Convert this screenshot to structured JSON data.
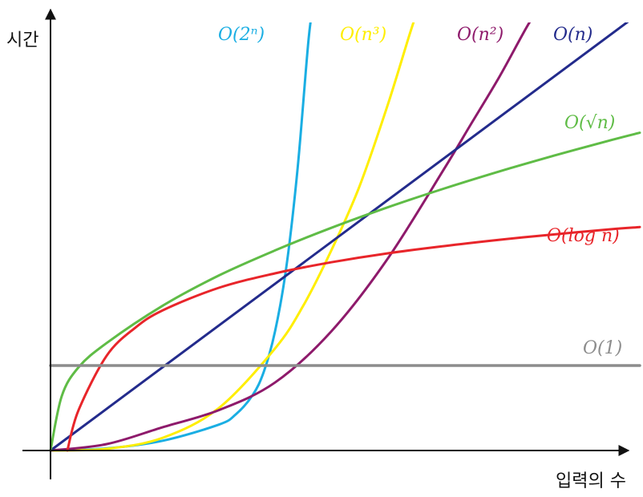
{
  "chart_data": {
    "type": "line",
    "title": "",
    "xlabel": "입력의 수",
    "ylabel": "시간",
    "xlim": [
      0,
      10
    ],
    "ylim": [
      0,
      10
    ],
    "grid": false,
    "legend": "none",
    "series": [
      {
        "name": "O(2ⁿ)",
        "color": "#1aaee3",
        "x": [
          0,
          1,
          2,
          3,
          3.3,
          3.6,
          3.8,
          4.0,
          4.2,
          4.4,
          4.6,
          4.7
        ],
        "y": [
          0,
          0.05,
          0.23,
          0.61,
          0.85,
          1.3,
          1.85,
          2.8,
          4.3,
          6.6,
          9.7,
          10.6
        ]
      },
      {
        "name": "O(n³)",
        "color": "#ffee00",
        "x": [
          0,
          1,
          2,
          3,
          4,
          4.5,
          5,
          5.5,
          6,
          6.4,
          6.6
        ],
        "y": [
          0,
          0.04,
          0.3,
          1.0,
          2.4,
          3.4,
          4.7,
          6.2,
          8.1,
          9.8,
          10.6
        ]
      },
      {
        "name": "O(n²)",
        "color": "#8e1a6b",
        "x": [
          0,
          1,
          2,
          3,
          4,
          5,
          6,
          7,
          7.5,
          8,
          8.5,
          8.8
        ],
        "y": [
          0,
          0.15,
          0.55,
          0.95,
          1.6,
          2.8,
          4.5,
          6.6,
          7.7,
          8.8,
          10.0,
          10.6
        ]
      },
      {
        "name": "O(n)",
        "color": "#232b8c",
        "x": [
          0,
          10.5
        ],
        "y": [
          0,
          10.3
        ]
      },
      {
        "name": "O(√n)",
        "color": "#5fbc46",
        "x": [
          0,
          0.2,
          0.5,
          1,
          2,
          3,
          4,
          5,
          6,
          7,
          8,
          9,
          10,
          10.5
        ],
        "y": [
          0,
          1.28,
          1.96,
          2.53,
          3.41,
          4.12,
          4.71,
          5.24,
          5.72,
          6.16,
          6.57,
          6.95,
          7.31,
          7.48
        ]
      },
      {
        "name": "O(log n)",
        "color": "#e8252a",
        "x": [
          0.3,
          0.5,
          1,
          1.5,
          2,
          3,
          4,
          5,
          6,
          7,
          8,
          9,
          10,
          10.5
        ],
        "y": [
          0,
          0.95,
          2.23,
          2.88,
          3.3,
          3.83,
          4.17,
          4.43,
          4.64,
          4.81,
          4.96,
          5.09,
          5.21,
          5.26
        ]
      },
      {
        "name": "O(1)",
        "color": "#8c8c8c",
        "x": [
          0,
          10.5
        ],
        "y": [
          2.0,
          2.0
        ]
      }
    ]
  }
}
